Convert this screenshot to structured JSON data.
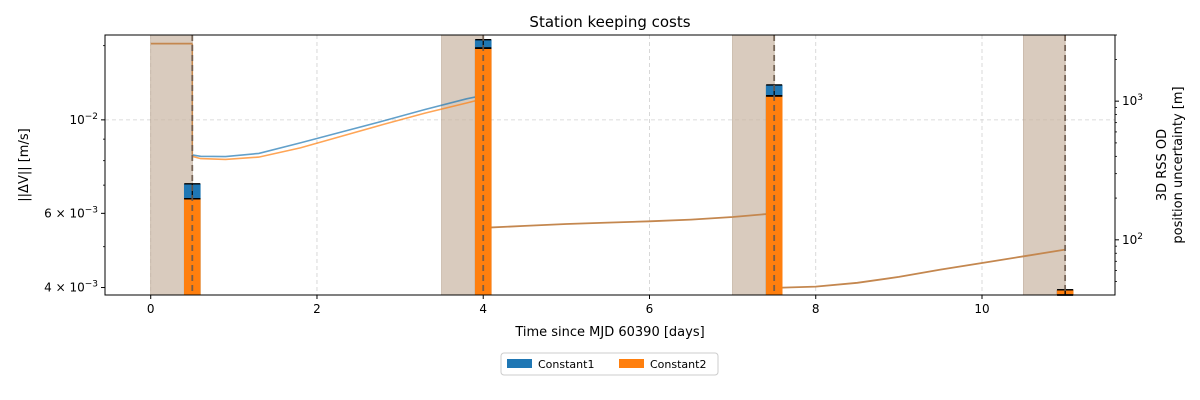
{
  "chart_data": {
    "type": "bar",
    "title": "Station keeping costs",
    "xlabel": "Time since MJD 60390 [days]",
    "ylabel": "||ΔV|| [m/s]",
    "y2label_line1": "3D RSS OD",
    "y2label_line2": "position uncertainty [m]",
    "xlim": [
      -0.55,
      11.6
    ],
    "ylim": [
      0.00384,
      0.0159
    ],
    "y_scale": "log",
    "y2lim": [
      40,
      3000
    ],
    "y2_scale": "log",
    "grid": true,
    "x_ticks": [
      0,
      2,
      4,
      6,
      8,
      10
    ],
    "x_tick_labels": [
      "0",
      "2",
      "4",
      "6",
      "8",
      "10"
    ],
    "y_ticks": [
      {
        "value": 0.004,
        "base": "4 × 10",
        "exp": "−3"
      },
      {
        "value": 0.006,
        "base": "6 × 10",
        "exp": "−3"
      },
      {
        "value": 0.01,
        "base": "10",
        "exp": "−2"
      }
    ],
    "y2_ticks": [
      {
        "value": 100,
        "base": "10",
        "exp": "2"
      },
      {
        "value": 1000,
        "base": "10",
        "exp": "3"
      }
    ],
    "shaded_windows": [
      [
        0,
        0.5
      ],
      [
        3.5,
        4.0
      ],
      [
        7.0,
        7.5
      ],
      [
        10.5,
        11.0
      ]
    ],
    "maneuver_times": [
      0.5,
      4.0,
      7.5,
      11.0
    ],
    "bar_width_days": 0.2,
    "series": [
      {
        "name": "Constant1",
        "color": "#1f77b4",
        "x": [
          0.5,
          4.0,
          7.5,
          11.0
        ],
        "values": [
          0.00705,
          0.0155,
          0.0121,
          0.00395
        ],
        "errors": [
          [
            0.0065,
            0.00705
          ],
          [
            0.0148,
            0.0155
          ],
          [
            0.0114,
            0.0121
          ],
          [
            0.00384,
            0.00395
          ]
        ],
        "uncertainty_curve": {
          "x": [
            0.5,
            0.6,
            0.9,
            1.3,
            1.8,
            2.3,
            2.8,
            3.3,
            3.8,
            4.0
          ],
          "y": [
            410,
            400,
            398,
            420,
            500,
            600,
            720,
            870,
            1040,
            1100
          ]
        }
      },
      {
        "name": "Constant2",
        "color": "#ff7f0e",
        "x": [
          0.5,
          4.0,
          7.5,
          11.0
        ],
        "values": [
          0.0065,
          0.0148,
          0.0114,
          0.00395
        ],
        "errors": [
          [
            0.0065,
            0.0065
          ],
          [
            0.0148,
            0.0148
          ],
          [
            0.0114,
            0.0114
          ],
          [
            0.00384,
            0.00395
          ]
        ],
        "uncertainty_curve": {
          "x": [
            0.5,
            0.6,
            0.9,
            1.3,
            1.8,
            2.3,
            2.8,
            3.3,
            3.8,
            4.0
          ],
          "y": [
            400,
            385,
            380,
            395,
            460,
            560,
            680,
            820,
            970,
            1040
          ]
        }
      }
    ],
    "shared_uncertainty": {
      "segments": [
        {
          "x": [
            0.0,
            0.5
          ],
          "y": [
            2600,
            2600
          ]
        },
        {
          "x": [
            4.0,
            4.5,
            5.0,
            5.5,
            6.0,
            6.5,
            7.0,
            7.5
          ],
          "y": [
            122,
            126,
            130,
            133,
            136,
            140,
            146,
            155
          ]
        },
        {
          "x": [
            7.5,
            8.0,
            8.5,
            9.0,
            9.5,
            10.0,
            10.5,
            11.0
          ],
          "y": [
            45,
            46,
            49,
            54,
            61,
            68,
            76,
            85
          ]
        }
      ],
      "verticals": [
        [
          0.5,
          2600,
          410
        ],
        [
          4.0,
          1100,
          122
        ],
        [
          7.5,
          155,
          45
        ]
      ]
    },
    "legend": {
      "placement": "bottom-center",
      "entries": [
        "Constant1",
        "Constant2"
      ]
    }
  }
}
